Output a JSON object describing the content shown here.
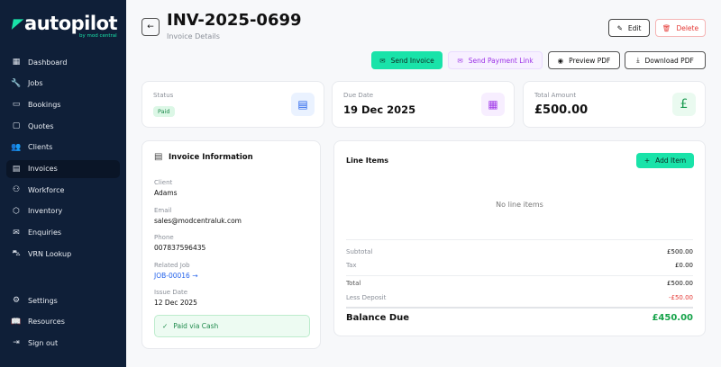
{
  "brand": {
    "name": "autopilot",
    "tagline": "by mod central",
    "accent": "#19e3a9"
  },
  "sidebar": {
    "items": [
      {
        "label": "Dashboard",
        "icon": "grid-icon"
      },
      {
        "label": "Jobs",
        "icon": "wrench-icon"
      },
      {
        "label": "Bookings",
        "icon": "calendar-icon"
      },
      {
        "label": "Quotes",
        "icon": "document-icon"
      },
      {
        "label": "Clients",
        "icon": "users-icon"
      },
      {
        "label": "Invoices",
        "icon": "invoice-icon",
        "active": true
      },
      {
        "label": "Workforce",
        "icon": "workforce-icon"
      },
      {
        "label": "Inventory",
        "icon": "box-icon"
      },
      {
        "label": "Enquiries",
        "icon": "mail-icon"
      },
      {
        "label": "VRN Lookup",
        "icon": "car-icon"
      }
    ],
    "bottom": [
      {
        "label": "Settings",
        "icon": "gear-icon"
      },
      {
        "label": "Resources",
        "icon": "book-icon"
      },
      {
        "label": "Sign out",
        "icon": "sign-out-icon"
      }
    ]
  },
  "header": {
    "title": "INV-2025-0699",
    "subtitle": "Invoice Details",
    "edit": "Edit",
    "delete": "Delete"
  },
  "actions": {
    "send_invoice": "Send Invoice",
    "send_payment_link": "Send Payment Link",
    "preview_pdf": "Preview PDF",
    "download_pdf": "Download PDF"
  },
  "stats": {
    "status": {
      "label": "Status",
      "value": "Paid"
    },
    "due_date": {
      "label": "Due Date",
      "value": "19 Dec 2025"
    },
    "total": {
      "label": "Total Amount",
      "value": "£500.00",
      "icon_glyph": "£"
    }
  },
  "info": {
    "title": "Invoice Information",
    "client_label": "Client",
    "client": "Adams",
    "email_label": "Email",
    "email": "sales@modcentraluk.com",
    "phone_label": "Phone",
    "phone": "007837596435",
    "job_label": "Related Job",
    "job": "JOB-00016 →",
    "issue_label": "Issue Date",
    "issue": "12 Dec 2025",
    "paid_note": "Paid via Cash"
  },
  "line_items": {
    "title": "Line Items",
    "add": "Add Item",
    "empty": "No line items",
    "subtotal_label": "Subtotal",
    "subtotal": "£500.00",
    "tax_label": "Tax",
    "tax": "£0.00",
    "total_label": "Total",
    "total": "£500.00",
    "deposit_label": "Less Deposit",
    "deposit": "-£50.00",
    "balance_label": "Balance Due",
    "balance": "£450.00"
  }
}
